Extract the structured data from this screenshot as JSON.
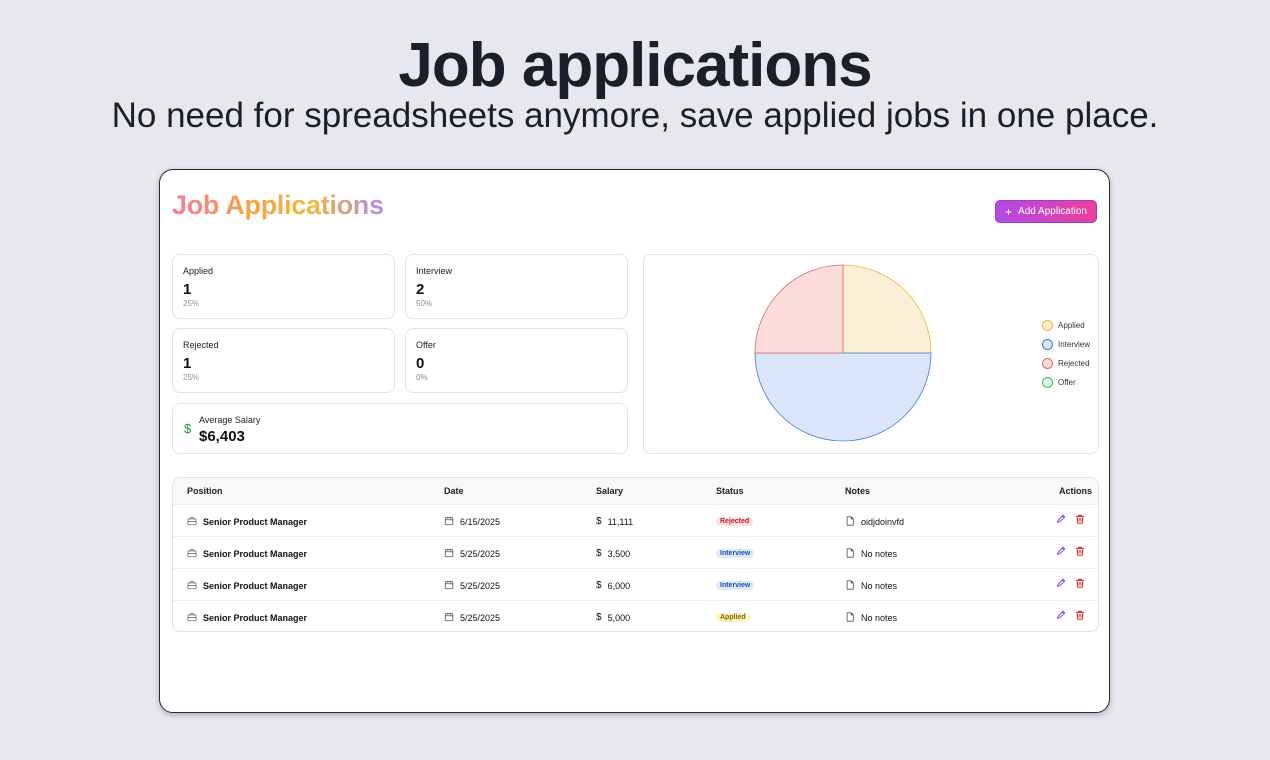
{
  "hero": {
    "title": "Job applications",
    "subtitle": "No need for spreadsheets anymore, save applied jobs in one place."
  },
  "app": {
    "title": "Job Applications",
    "add_button": "Add Application"
  },
  "stats": {
    "applied": {
      "label": "Applied",
      "value": "1",
      "pct": "25%"
    },
    "interview": {
      "label": "Interview",
      "value": "2",
      "pct": "50%"
    },
    "rejected": {
      "label": "Rejected",
      "value": "1",
      "pct": "25%"
    },
    "offer": {
      "label": "Offer",
      "value": "0",
      "pct": "0%"
    },
    "salary": {
      "label": "Average Salary",
      "value": "$6,403"
    }
  },
  "chart_data": {
    "type": "pie",
    "categories": [
      "Applied",
      "Interview",
      "Rejected",
      "Offer"
    ],
    "values": [
      1,
      2,
      1,
      0
    ],
    "colors": {
      "Applied": {
        "fill": "#fbefd6",
        "stroke": "#e8b53a"
      },
      "Interview": {
        "fill": "#dbe6fb",
        "stroke": "#3b7ad8"
      },
      "Rejected": {
        "fill": "#fddcdc",
        "stroke": "#e06464"
      },
      "Offer": {
        "fill": "#dcf7e2",
        "stroke": "#3cb960"
      }
    },
    "legend": "right"
  },
  "table": {
    "headers": {
      "position": "Position",
      "date": "Date",
      "salary": "Salary",
      "status": "Status",
      "notes": "Notes",
      "actions": "Actions"
    },
    "rows": [
      {
        "position": "Senior Product Manager",
        "date": "6/15/2025",
        "salary": "11,111",
        "status": "Rejected",
        "notes": "oidjdoinvfd"
      },
      {
        "position": "Senior Product Manager",
        "date": "5/25/2025",
        "salary": "3,500",
        "status": "Interview",
        "notes": "No notes"
      },
      {
        "position": "Senior Product Manager",
        "date": "5/25/2025",
        "salary": "6,000",
        "status": "Interview",
        "notes": "No notes"
      },
      {
        "position": "Senior Product Manager",
        "date": "5/25/2025",
        "salary": "5,000",
        "status": "Applied",
        "notes": "No notes"
      }
    ]
  },
  "status_colors": {
    "Rejected": {
      "bg": "#fde0e0",
      "fg": "#b42323"
    },
    "Interview": {
      "bg": "#dfe8fb",
      "fg": "#1f4fa8"
    },
    "Applied": {
      "bg": "#fdf2b8",
      "fg": "#8a6207"
    }
  },
  "colors": {
    "accent_from": "#b14ae6",
    "accent_to": "#ec3f9a",
    "edit_icon": "#8b3fd9",
    "delete_icon": "#d42a2a",
    "salary_icon": "#1a9a4a"
  }
}
